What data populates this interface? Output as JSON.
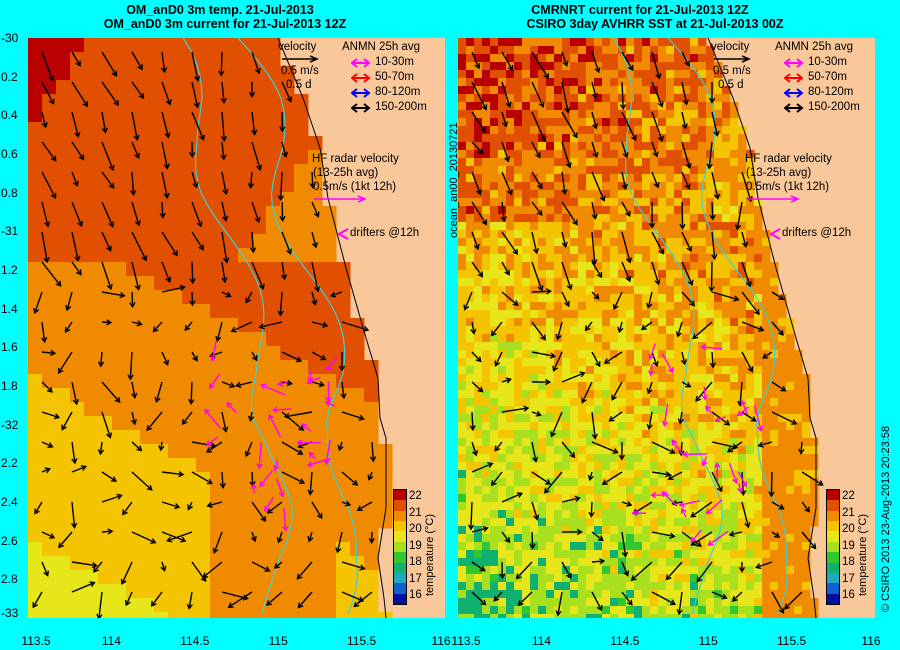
{
  "left_title": {
    "line1": "OM_anD0 3m temp. 21-Jul-2013",
    "line2": "OM_anD0 3m current for 21-Jul-2013 12Z"
  },
  "right_title": {
    "line1": "CMRNRT current for 21-Jul-2013 12Z",
    "line2": "CSIRO 3day AVHRR SST at 21-Jul-2013 00Z"
  },
  "y_labels": [
    "-30",
    "0.2",
    "0.4",
    "0.6",
    "0.8",
    "-31",
    "1.2",
    "1.4",
    "1.6",
    "1.8",
    "-32",
    "2.2",
    "2.4",
    "2.6",
    "2.8",
    "-33"
  ],
  "x_labels_left": [
    "113.5",
    "114",
    "114.5",
    "115",
    "115.5",
    "116"
  ],
  "x_labels_right": [
    "113.5",
    "114",
    "114.5",
    "115",
    "115.5",
    "116"
  ],
  "legend": {
    "velocity": "velocity",
    "scale_speed": "0.5 m/s",
    "scale_time": "0.5 d",
    "anmn_title": "ANMN 25h avg",
    "depths": [
      {
        "label": "10-30m",
        "color": "#ff00ff"
      },
      {
        "label": "50-70m",
        "color": "#ff0000"
      },
      {
        "label": "80-120m",
        "color": "#0000ff"
      },
      {
        "label": "150-200m",
        "color": "#000000"
      }
    ],
    "hf_title": "HF radar velocity",
    "hf_avg": "(13-25h avg)",
    "hf_scale": "0.5m/s (1kt 12h)",
    "drifters": "drifters @12h"
  },
  "colorbar": {
    "title": "temperature (°C)",
    "ticks": [
      "22",
      "21",
      "20",
      "19",
      "18",
      "17",
      "16"
    ],
    "colors": [
      "#b80000",
      "#e05000",
      "#f08a00",
      "#f5c400",
      "#e6e61a",
      "#a8e020",
      "#30c830",
      "#10b070",
      "#20a8c0",
      "#1060d0",
      "#0010a0"
    ]
  },
  "side_label": "ocean_an00_20130721",
  "footer": "© CSIRO 2013   23-Aug-2013 20:23:58",
  "colors": {
    "background": "#00ffff",
    "land": "#f8c79a",
    "isobath": "#40d0d0",
    "hf_arrow": "#ff00ff"
  }
}
